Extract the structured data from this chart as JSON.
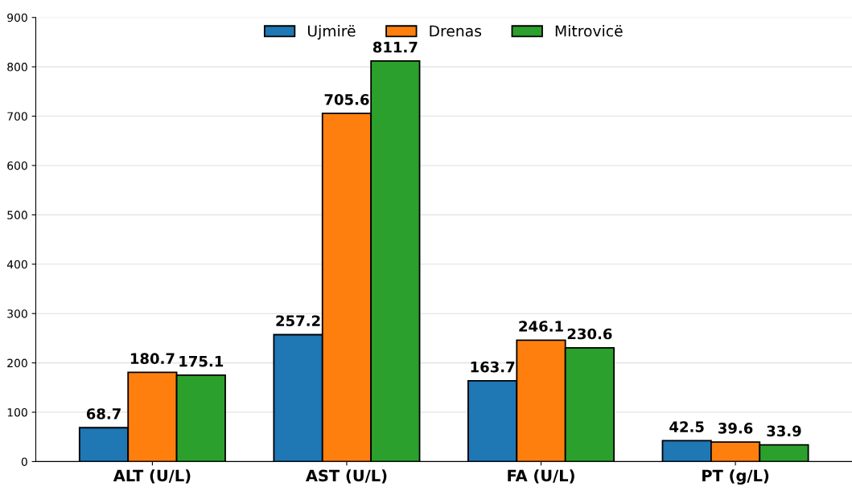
{
  "chart_data": {
    "type": "bar",
    "categories": [
      "ALT (U/L)",
      "AST (U/L)",
      "FA (U/L)",
      "PT (g/L)"
    ],
    "series": [
      {
        "name": "Ujmirë",
        "color": "#1f77b4",
        "values": [
          68.7,
          257.2,
          163.7,
          42.5
        ]
      },
      {
        "name": "Drenas",
        "color": "#ff7f0e",
        "values": [
          180.7,
          705.6,
          246.1,
          39.6
        ]
      },
      {
        "name": "Mitrovicë",
        "color": "#2ca02c",
        "values": [
          175.1,
          811.7,
          230.6,
          33.9
        ]
      }
    ],
    "ylim": [
      0,
      900
    ],
    "yticks": [
      0,
      100,
      200,
      300,
      400,
      500,
      600,
      700,
      800,
      900
    ],
    "grid": "y",
    "legend": "top",
    "data_labels": true
  }
}
